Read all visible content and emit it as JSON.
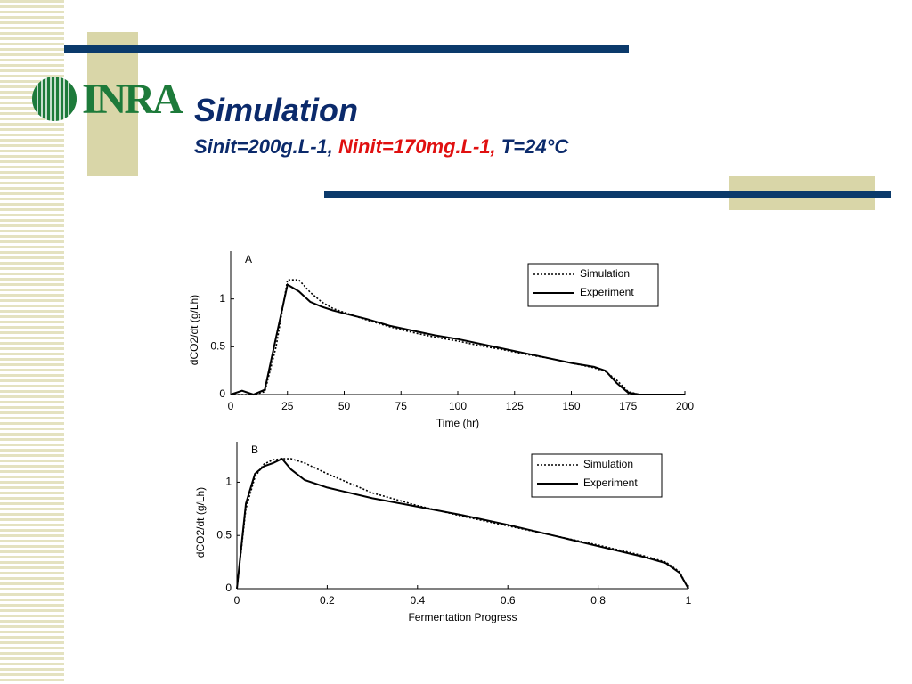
{
  "slide": {
    "logo": "INRA",
    "title": "Simulation",
    "subtitle_parts": [
      "Sinit=200g.L-1,",
      "Ninit=170mg.L-1,",
      "T=24°C"
    ]
  },
  "chart_data": [
    {
      "type": "line",
      "panel_label": "A",
      "x_label": "Time (hr)",
      "y_label": "dCO2/dt (g/Lh)",
      "x": [
        0,
        5,
        10,
        15,
        20,
        25,
        30,
        35,
        40,
        45,
        50,
        60,
        70,
        80,
        90,
        100,
        110,
        120,
        130,
        140,
        150,
        160,
        165,
        170,
        175,
        180,
        190,
        200
      ],
      "xlim": [
        0,
        200
      ],
      "xticks": [
        0,
        25,
        50,
        75,
        100,
        125,
        150,
        175,
        200
      ],
      "ylim": [
        0,
        1.5
      ],
      "yticks": [
        0,
        0.5,
        1
      ],
      "legend": "upper right",
      "series": [
        {
          "name": "Simulation",
          "color": "#000000",
          "line_style": "dotted",
          "values": [
            0,
            0,
            0,
            0.03,
            0.5,
            1.2,
            1.2,
            1.07,
            0.97,
            0.9,
            0.86,
            0.78,
            0.71,
            0.65,
            0.6,
            0.56,
            0.51,
            0.47,
            0.42,
            0.38,
            0.33,
            0.28,
            0.24,
            0.15,
            0.03,
            0,
            0,
            0
          ]
        },
        {
          "name": "Experiment",
          "color": "#000000",
          "line_style": "solid",
          "values": [
            0,
            0.04,
            0,
            0.05,
            0.6,
            1.15,
            1.08,
            0.97,
            0.92,
            0.88,
            0.85,
            0.79,
            0.72,
            0.67,
            0.62,
            0.58,
            0.53,
            0.48,
            0.43,
            0.38,
            0.33,
            0.29,
            0.25,
            0.12,
            0.02,
            0,
            0,
            0
          ]
        }
      ]
    },
    {
      "type": "line",
      "panel_label": "B",
      "x_label": "Fermentation Progress",
      "y_label": "dCO2/dt (g/Lh)",
      "x": [
        0,
        0.02,
        0.04,
        0.06,
        0.08,
        0.1,
        0.12,
        0.15,
        0.2,
        0.3,
        0.4,
        0.5,
        0.6,
        0.7,
        0.8,
        0.9,
        0.95,
        0.98,
        1
      ],
      "xlim": [
        0,
        1
      ],
      "xticks": [
        0,
        0.2,
        0.4,
        0.6,
        0.8,
        1
      ],
      "ylim": [
        0,
        1.38
      ],
      "yticks": [
        0,
        0.5,
        1
      ],
      "legend": "upper right",
      "series": [
        {
          "name": "Simulation",
          "color": "#000000",
          "line_style": "dotted",
          "values": [
            0,
            0.75,
            1.05,
            1.17,
            1.21,
            1.22,
            1.22,
            1.18,
            1.08,
            0.9,
            0.78,
            0.68,
            0.59,
            0.5,
            0.41,
            0.31,
            0.25,
            0.16,
            0
          ]
        },
        {
          "name": "Experiment",
          "color": "#000000",
          "line_style": "solid",
          "values": [
            0,
            0.8,
            1.08,
            1.15,
            1.18,
            1.22,
            1.12,
            1.02,
            0.95,
            0.85,
            0.77,
            0.69,
            0.6,
            0.5,
            0.4,
            0.3,
            0.24,
            0.15,
            0
          ]
        }
      ]
    }
  ]
}
